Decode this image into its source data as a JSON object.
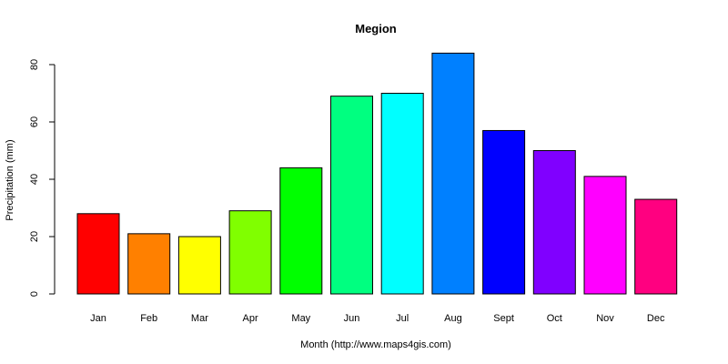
{
  "chart_data": {
    "type": "bar",
    "title": "Megion",
    "xlabel": "Month (http://www.maps4gis.com)",
    "ylabel": "Precipitation (mm)",
    "ylim": [
      0,
      85
    ],
    "yticks": [
      0,
      20,
      40,
      60,
      80
    ],
    "categories": [
      "Jan",
      "Feb",
      "Mar",
      "Apr",
      "May",
      "Jun",
      "Jul",
      "Aug",
      "Sept",
      "Oct",
      "Nov",
      "Dec"
    ],
    "values": [
      28,
      21,
      20,
      29,
      44,
      69,
      70,
      84,
      57,
      50,
      41,
      33
    ],
    "colors": [
      "#FF0000",
      "#FF8000",
      "#FFFF00",
      "#80FF00",
      "#00FF00",
      "#00FF80",
      "#00FFFF",
      "#0080FF",
      "#0000FF",
      "#8000FF",
      "#FF00FF",
      "#FF0080"
    ],
    "grid": false,
    "legend": "none"
  }
}
